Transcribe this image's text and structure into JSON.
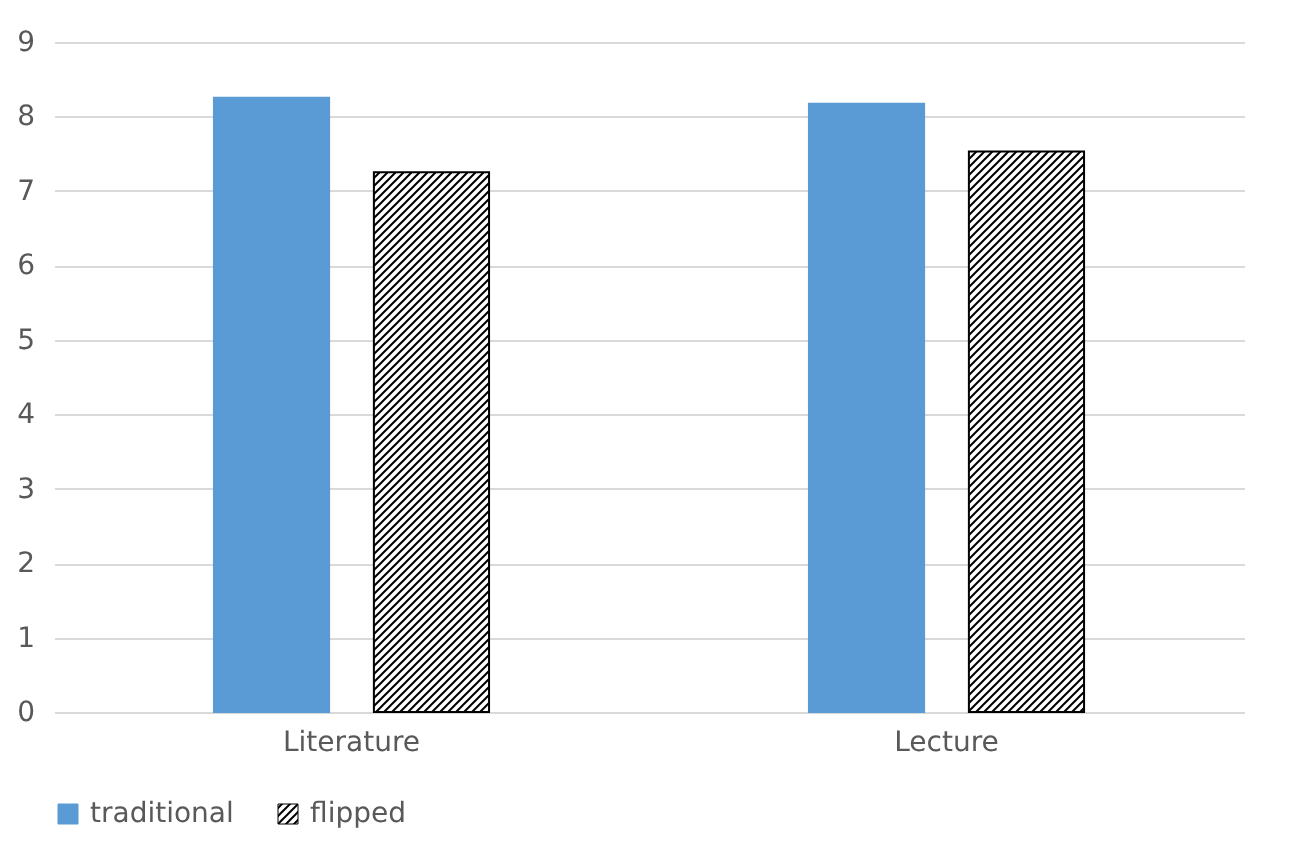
{
  "chart_data": {
    "type": "bar",
    "categories": [
      "Literature",
      "Lecture"
    ],
    "series": [
      {
        "name": "traditional",
        "color": "#5b9bd5",
        "values": [
          8.25,
          8.17
        ]
      },
      {
        "name": "flipped",
        "color": "#000000",
        "values": [
          7.25,
          7.53
        ]
      }
    ],
    "ylim": [
      0,
      9
    ],
    "yticks": [
      0,
      1,
      2,
      3,
      4,
      5,
      6,
      7,
      8,
      9
    ],
    "grid": "y",
    "legend": "bottom"
  }
}
